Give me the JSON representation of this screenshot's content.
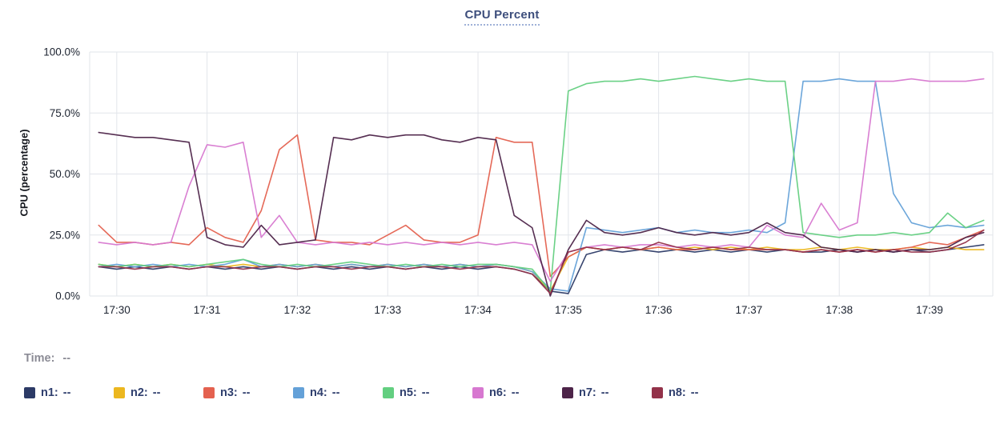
{
  "title": "CPU Percent",
  "time_row": {
    "label": "Time:",
    "value": "--"
  },
  "legend": {
    "items": [
      {
        "label": "n1:",
        "value": "--",
        "color": "#2c3a66"
      },
      {
        "label": "n2:",
        "value": "--",
        "color": "#ecb71f"
      },
      {
        "label": "n3:",
        "value": "--",
        "color": "#e4614f"
      },
      {
        "label": "n4:",
        "value": "--",
        "color": "#64a1d8"
      },
      {
        "label": "n5:",
        "value": "--",
        "color": "#63cf80"
      },
      {
        "label": "n6:",
        "value": "--",
        "color": "#d778d0"
      },
      {
        "label": "n7:",
        "value": "--",
        "color": "#4d2449"
      },
      {
        "label": "n8:",
        "value": "--",
        "color": "#93324a"
      }
    ]
  },
  "chart_data": {
    "type": "line",
    "title": "CPU Percent",
    "xlabel": "",
    "ylabel": "CPU (percentage)",
    "grid": true,
    "legend_position": "bottom",
    "ylim": [
      0,
      100
    ],
    "xlim": [
      -0.3,
      9.7
    ],
    "y_tick_values": [
      0,
      25,
      50,
      75,
      100
    ],
    "y_tick_labels": [
      "0.0%",
      "25.0%",
      "50.0%",
      "75.0%",
      "100.0%"
    ],
    "x_tick_values": [
      0,
      1,
      2,
      3,
      4,
      5,
      6,
      7,
      8,
      9
    ],
    "x_tick_labels": [
      "17:30",
      "17:31",
      "17:32",
      "17:33",
      "17:34",
      "17:35",
      "17:36",
      "17:37",
      "17:38",
      "17:39"
    ],
    "x_start": -0.2,
    "x_step": 0.2,
    "x_unit": "minutes after 17:30",
    "y_unit": "percent",
    "series": [
      {
        "name": "n1",
        "color": "#2c3a66",
        "values": [
          12,
          11,
          12,
          11,
          12,
          11,
          12,
          11,
          12,
          11,
          12,
          11,
          12,
          11,
          12,
          11,
          12,
          11,
          12,
          11,
          12,
          11,
          12,
          11,
          9,
          2,
          1,
          17,
          19,
          18,
          19,
          18,
          19,
          18,
          19,
          18,
          19,
          18,
          19,
          18,
          18,
          19,
          18,
          19,
          18,
          19,
          18,
          19,
          20,
          21
        ]
      },
      {
        "name": "n2",
        "color": "#ecb71f",
        "values": [
          13,
          12,
          13,
          12,
          13,
          12,
          13,
          12,
          13,
          12,
          13,
          12,
          13,
          12,
          13,
          12,
          13,
          12,
          13,
          12,
          13,
          12,
          13,
          12,
          10,
          2,
          16,
          20,
          19,
          20,
          19,
          20,
          19,
          20,
          19,
          20,
          19,
          20,
          19,
          19,
          20,
          19,
          20,
          19,
          19,
          20,
          19,
          20,
          19,
          19
        ]
      },
      {
        "name": "n3",
        "color": "#e4614f",
        "values": [
          29,
          22,
          22,
          21,
          22,
          21,
          28,
          24,
          22,
          35,
          60,
          66,
          23,
          22,
          22,
          21,
          25,
          29,
          23,
          22,
          22,
          25,
          65,
          63,
          63,
          8,
          16,
          20,
          19,
          20,
          19,
          20,
          19,
          19,
          20,
          19,
          19,
          19,
          19,
          18,
          19,
          18,
          19,
          18,
          19,
          20,
          22,
          21,
          24,
          27
        ]
      },
      {
        "name": "n4",
        "color": "#64a1d8",
        "values": [
          12,
          13,
          12,
          13,
          12,
          13,
          12,
          13,
          15,
          12,
          13,
          12,
          13,
          12,
          13,
          12,
          13,
          12,
          13,
          12,
          13,
          12,
          13,
          12,
          10,
          3,
          2,
          28,
          27,
          26,
          27,
          28,
          26,
          27,
          26,
          26,
          27,
          26,
          30,
          88,
          88,
          89,
          88,
          88,
          42,
          30,
          28,
          29,
          28,
          29
        ]
      },
      {
        "name": "n5",
        "color": "#63cf80",
        "values": [
          13,
          12,
          13,
          12,
          13,
          12,
          13,
          14,
          15,
          13,
          12,
          13,
          12,
          13,
          14,
          13,
          12,
          13,
          12,
          13,
          12,
          13,
          13,
          12,
          11,
          2,
          84,
          87,
          88,
          88,
          89,
          88,
          89,
          90,
          89,
          88,
          89,
          88,
          88,
          26,
          25,
          24,
          25,
          25,
          26,
          25,
          26,
          34,
          28,
          31
        ]
      },
      {
        "name": "n6",
        "color": "#d778d0",
        "values": [
          22,
          21,
          22,
          21,
          22,
          45,
          62,
          61,
          63,
          24,
          33,
          22,
          21,
          22,
          21,
          22,
          21,
          22,
          21,
          22,
          21,
          22,
          21,
          22,
          21,
          6,
          18,
          20,
          21,
          20,
          21,
          21,
          20,
          21,
          20,
          21,
          20,
          29,
          25,
          24,
          38,
          27,
          30,
          88,
          88,
          89,
          88,
          88,
          88,
          89
        ]
      },
      {
        "name": "n7",
        "color": "#4d2449",
        "values": [
          67,
          66,
          65,
          65,
          64,
          63,
          24,
          21,
          20,
          29,
          21,
          22,
          23,
          65,
          64,
          66,
          65,
          66,
          66,
          64,
          63,
          65,
          64,
          33,
          28,
          0,
          19,
          31,
          26,
          25,
          26,
          28,
          26,
          25,
          26,
          25,
          26,
          30,
          26,
          25,
          20,
          19,
          18,
          19,
          18,
          19,
          19,
          20,
          24,
          26
        ]
      },
      {
        "name": "n8",
        "color": "#93324a",
        "values": [
          12,
          12,
          11,
          12,
          12,
          11,
          12,
          12,
          11,
          12,
          12,
          11,
          12,
          12,
          11,
          12,
          12,
          11,
          12,
          12,
          11,
          12,
          12,
          11,
          9,
          1,
          18,
          20,
          19,
          20,
          19,
          22,
          20,
          19,
          20,
          19,
          20,
          19,
          19,
          18,
          19,
          18,
          19,
          18,
          19,
          18,
          18,
          19,
          22,
          27
        ]
      }
    ]
  }
}
